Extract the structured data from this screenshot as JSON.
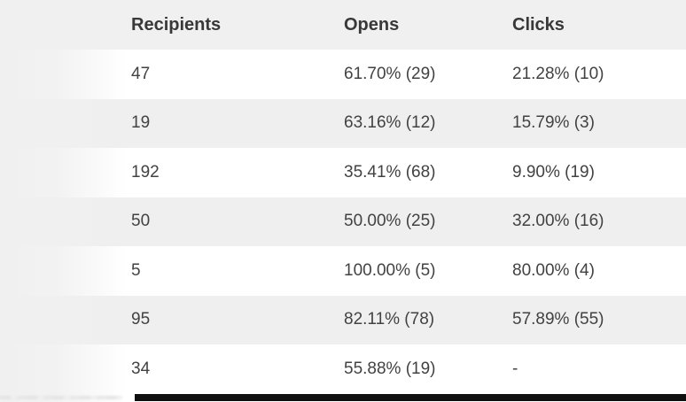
{
  "table": {
    "columns": [
      {
        "label": "Recipients"
      },
      {
        "label": "Opens"
      },
      {
        "label": "Clicks"
      }
    ],
    "rows": [
      {
        "recipients": "47",
        "opens": "61.70% (29)",
        "clicks": "21.28% (10)"
      },
      {
        "recipients": "19",
        "opens": "63.16% (12)",
        "clicks": "15.79% (3)"
      },
      {
        "recipients": "192",
        "opens": "35.41% (68)",
        "clicks": "9.90% (19)"
      },
      {
        "recipients": "50",
        "opens": "50.00% (25)",
        "clicks": "32.00% (16)"
      },
      {
        "recipients": "5",
        "opens": "100.00% (5)",
        "clicks": "80.00% (4)"
      },
      {
        "recipients": "95",
        "opens": "82.11% (78)",
        "clicks": "57.89% (55)"
      },
      {
        "recipients": "34",
        "opens": "55.88% (19)",
        "clicks": "-"
      }
    ]
  },
  "colors": {
    "header_bg": "#f0f0f0",
    "row_stripe": "#efefef",
    "row_plain": "#ffffff",
    "text": "#424242",
    "header_text": "#383838",
    "bottom_bar": "#101010"
  }
}
